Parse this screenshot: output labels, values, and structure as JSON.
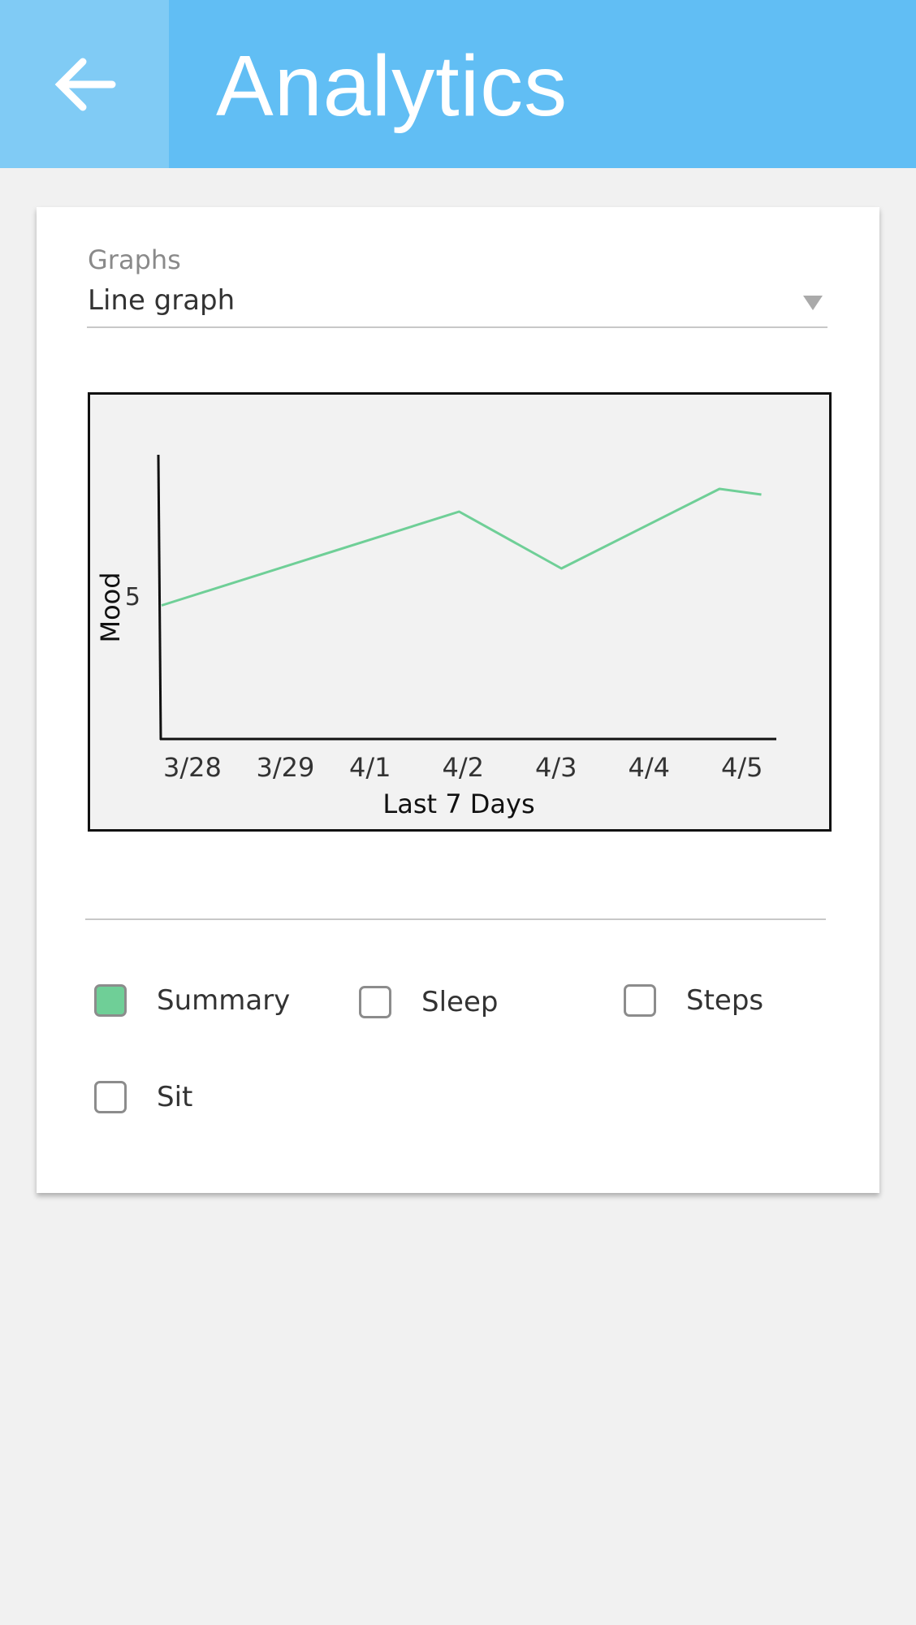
{
  "header": {
    "title": "Analytics",
    "back_icon": "arrow-left-icon",
    "colors": {
      "bar": "#61bef4",
      "back_area": "#80cbf5",
      "text": "#ffffff"
    }
  },
  "graph_selector": {
    "caption": "Graphs",
    "value": "Line graph",
    "arrow_icon": "dropdown-triangle-icon"
  },
  "chart_data": {
    "type": "line",
    "xlabel": "Last 7 Days",
    "ylabel": "Mood",
    "categories": [
      "3/28",
      "3/29",
      "4/1",
      "4/2",
      "4/3",
      "4/4",
      "4/5"
    ],
    "y_tick": 5,
    "ylim": [
      0,
      10
    ],
    "series": [
      {
        "x": [
          0,
          3.2,
          4.3,
          6.0,
          6.45
        ],
        "values": [
          4.7,
          8.0,
          6.0,
          8.8,
          8.6
        ]
      }
    ],
    "line_color": "#6fcf97",
    "grid": false,
    "legend": "none"
  },
  "filters": {
    "options": [
      {
        "label": "Summary",
        "checked": true
      },
      {
        "label": "Sleep",
        "checked": false
      },
      {
        "label": "Steps",
        "checked": false
      },
      {
        "label": "Sit",
        "checked": false
      }
    ],
    "checked_color": "#6fcf97"
  }
}
